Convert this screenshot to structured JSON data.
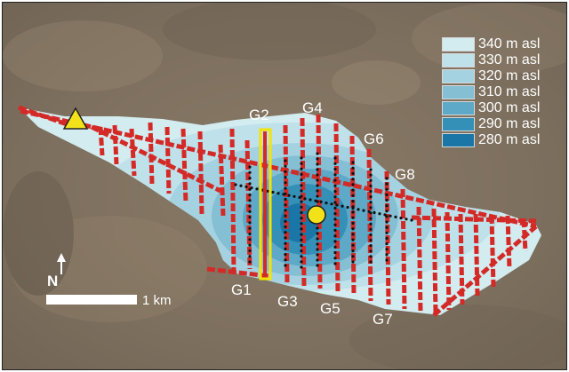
{
  "legend": {
    "items": [
      {
        "label": "340 m asl",
        "color": "#d3ecf0"
      },
      {
        "label": "330 m asl",
        "color": "#bfe1ea"
      },
      {
        "label": "320 m asl",
        "color": "#a5d2e0"
      },
      {
        "label": "310 m asl",
        "color": "#85bfd4"
      },
      {
        "label": "300 m asl",
        "color": "#5ea9c7"
      },
      {
        "label": "290 m asl",
        "color": "#3590b8"
      },
      {
        "label": "280 m asl",
        "color": "#1a76a6"
      }
    ]
  },
  "line_labels": [
    "G1",
    "G2",
    "G3",
    "G4",
    "G5",
    "G6",
    "G7",
    "G8"
  ],
  "north_label": "N",
  "scale_bar": {
    "label": "1 km"
  },
  "colors": {
    "survey_lines": "#d42a27",
    "highlight_line": "#f6e400",
    "markers": "#f3e21a"
  },
  "icons": {
    "triangle_marker": "yellow-triangle-marker",
    "circle_marker": "yellow-circle-marker",
    "north_arrow": "north-arrow-icon"
  }
}
